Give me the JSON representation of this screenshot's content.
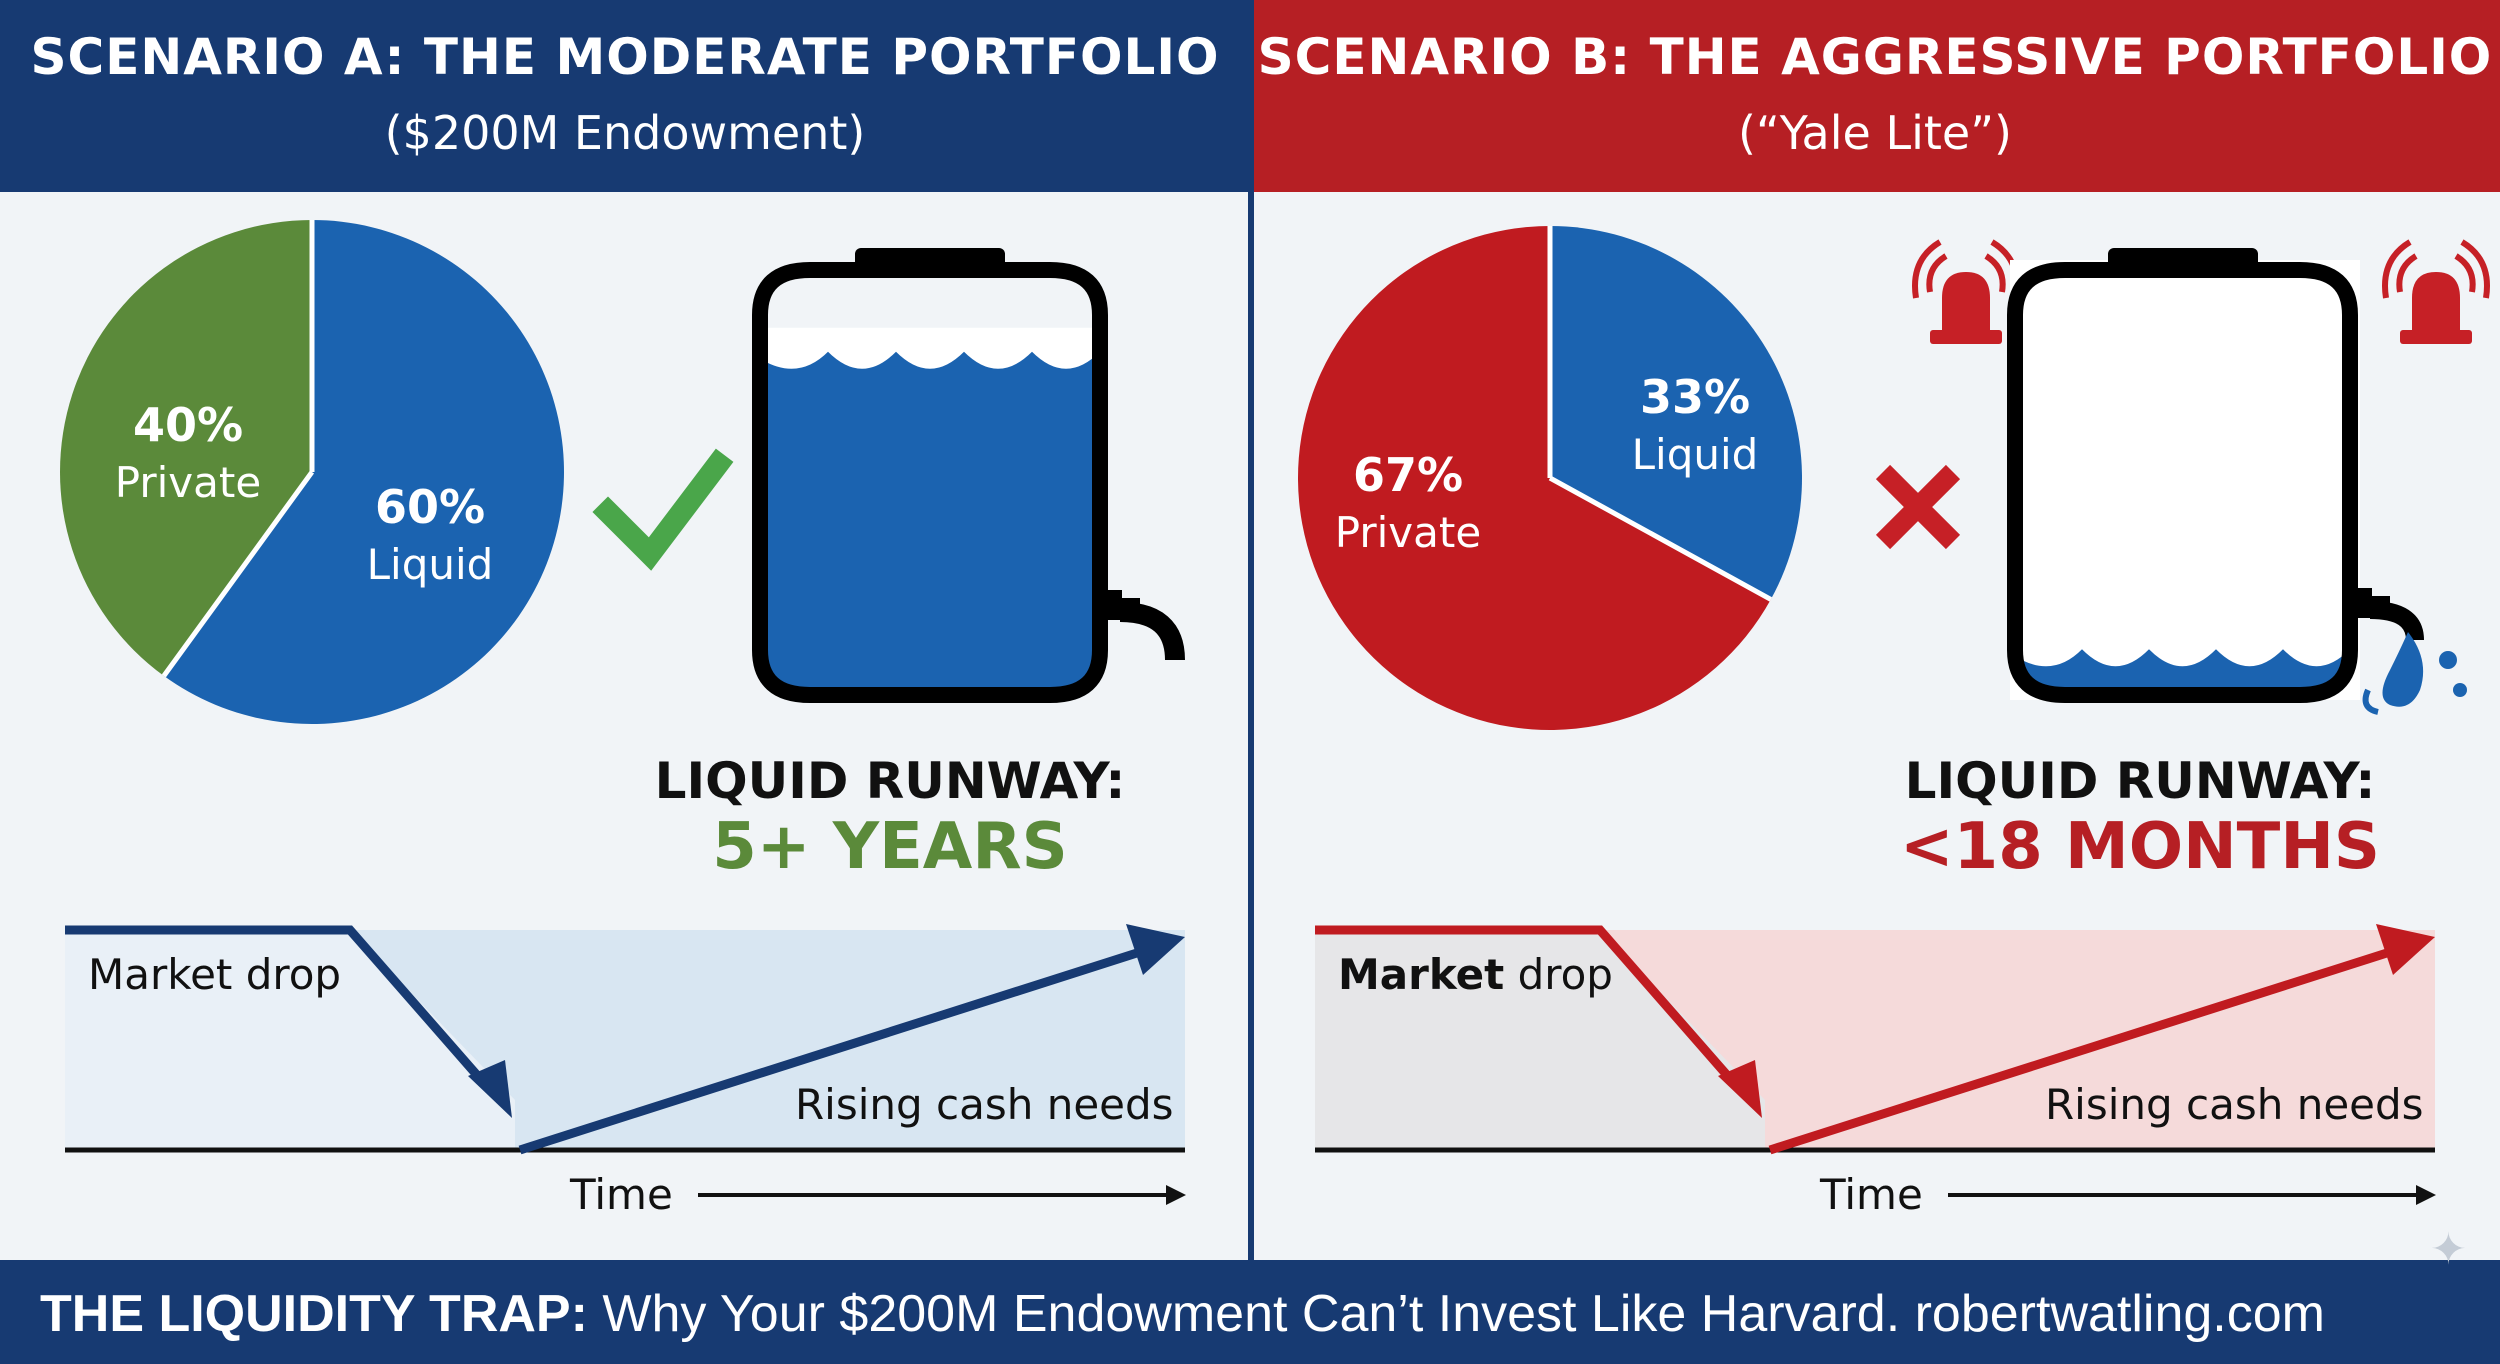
{
  "scenario_a": {
    "title": "SCENARIO A: THE MODERATE PORTFOLIO",
    "subtitle": "($200M Endowment)",
    "pie": [
      {
        "label": "Liquid",
        "pct_label": "60%",
        "value": 60,
        "color": "#1b63b0"
      },
      {
        "label": "Private",
        "pct_label": "40%",
        "value": 40,
        "color": "#5b8a3a"
      }
    ],
    "verdict_icon": "checkmark-icon",
    "tank_fill": 0.85,
    "runway_label": "LIQUID RUNWAY:",
    "runway_value": "5+ YEARS",
    "chart": {
      "drop_label_bold": "",
      "drop_label": "Market drop",
      "needs_label": "Rising cash needs",
      "time_label": "Time",
      "line_color": "#173a72"
    }
  },
  "scenario_b": {
    "title": "SCENARIO B: THE AGGRESSIVE PORTFOLIO",
    "subtitle": "(“Yale Lite”)",
    "pie": [
      {
        "label": "Liquid",
        "pct_label": "33%",
        "value": 33,
        "color": "#1b63b0"
      },
      {
        "label": "Private",
        "pct_label": "67%",
        "value": 67,
        "color": "#c01b20"
      }
    ],
    "verdict_icon": "cross-icon",
    "alarm_icon": "alarm-siren-icon",
    "tank_fill": 0.15,
    "runway_label": "LIQUID RUNWAY:",
    "runway_value": "<18 MONTHS",
    "chart": {
      "drop_label_bold": "Market",
      "drop_label": "drop",
      "needs_label": "Rising cash needs",
      "time_label": "Time",
      "line_color": "#c01b20"
    }
  },
  "footer": {
    "bold": "THE LIQUIDITY TRAP:",
    "text": "Why Your $200M Endowment Can’t Invest Like Harvard. robertwatling.com"
  },
  "colors": {
    "navy": "#173a72",
    "red": "#b61f24",
    "blue": "#1b63b0",
    "green": "#5b8a3a"
  }
}
